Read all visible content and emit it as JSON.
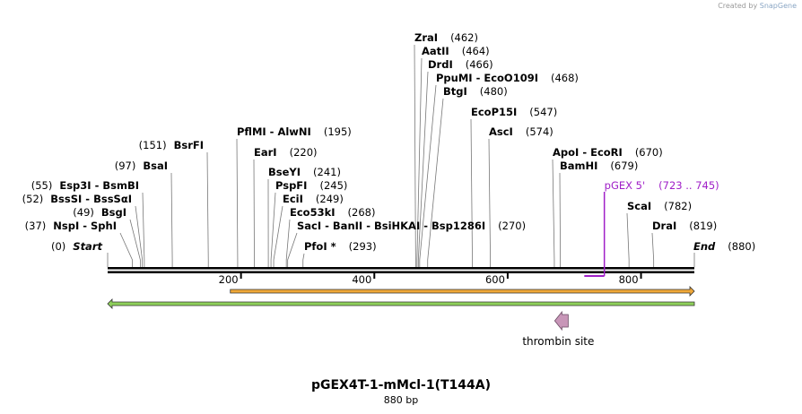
{
  "credit": {
    "prefix": "Created by",
    "brand": "SnapGene"
  },
  "title": "pGEX4T-1-mMcl-1(T144A)",
  "subtitle": "880 bp",
  "sequence_length": 880,
  "ticks": [
    200,
    400,
    600,
    800
  ],
  "sites": [
    {
      "text": "ZraI",
      "pos": "(462)",
      "bp": 462
    },
    {
      "text": "AatII",
      "pos": "(464)",
      "bp": 464
    },
    {
      "text": "DrdI",
      "pos": "(466)",
      "bp": 466
    },
    {
      "text": "PpuMI  -  EcoO109I",
      "pos": "(468)",
      "bp": 468
    },
    {
      "text": "BtgI",
      "pos": "(480)",
      "bp": 480
    },
    {
      "text": "EcoP15I",
      "pos": "(547)",
      "bp": 547
    },
    {
      "text": "AscI",
      "pos": "(574)",
      "bp": 574
    },
    {
      "text": "ApoI  -  EcoRI",
      "pos": "(670)",
      "bp": 670
    },
    {
      "text": "BamHI",
      "pos": "(679)",
      "bp": 679
    },
    {
      "text": "ScaI",
      "pos": "(782)",
      "bp": 782
    },
    {
      "text": "DraI",
      "pos": "(819)",
      "bp": 819
    },
    {
      "text": "End",
      "pos": "(880)",
      "bp": 880
    },
    {
      "text": "PflMI  -  AlwNI",
      "pos": "(195)",
      "bp": 195
    },
    {
      "text": "EarI",
      "pos": "(220)",
      "bp": 220
    },
    {
      "text": "BseYI",
      "pos": "(241)",
      "bp": 241
    },
    {
      "text": "PspFI",
      "pos": "(245)",
      "bp": 245
    },
    {
      "text": "EciI",
      "pos": "(249)",
      "bp": 249
    },
    {
      "text": "Eco53kI",
      "pos": "(268)",
      "bp": 268
    },
    {
      "text": "SacI  -  BanII  -  BsiHKAI  -  Bsp1286I",
      "pos": "(270)",
      "bp": 270
    },
    {
      "text": "PfoI *",
      "pos": "(293)",
      "bp": 293
    },
    {
      "text": "BsrFI",
      "pos": "(151)",
      "bp": 151
    },
    {
      "text": "BsaI",
      "pos": "(97)",
      "bp": 97
    },
    {
      "text": "Esp3I  -  BsmBI",
      "pos": "(55)",
      "bp": 55
    },
    {
      "text": "BssSI  -  BssSαI",
      "pos": "(52)",
      "bp": 52
    },
    {
      "text": "BsgI",
      "pos": "(49)",
      "bp": 49
    },
    {
      "text": "NspI  -  SphI",
      "pos": "(37)",
      "bp": 37
    },
    {
      "text": "Start",
      "pos": "(0)",
      "bp": 0
    }
  ],
  "primer": {
    "name": "pGEX 5'",
    "range": "(723 .. 745)",
    "start": 723,
    "end": 745,
    "color": "#a020c8"
  },
  "features": [
    {
      "name": "orange-feature",
      "start": 184,
      "end": 880,
      "direction": "forward",
      "color": "#f0a838"
    },
    {
      "name": "green-feature",
      "start": 0,
      "end": 880,
      "direction": "reverse",
      "color": "#8ed05a"
    }
  ],
  "thrombin": {
    "label": "thrombin site",
    "bp": 680,
    "color": "#c896b8"
  }
}
